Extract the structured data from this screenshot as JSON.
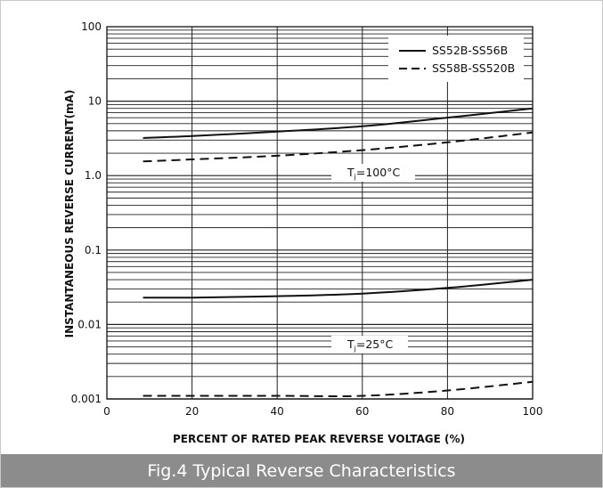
{
  "caption": "Fig.4 Typical Reverse Characteristics",
  "chart_data": {
    "type": "line",
    "title": "",
    "xlabel": "PERCENT OF RATED PEAK REVERSE VOLTAGE (%)",
    "ylabel": "INSTANTANEOUS REVERSE CURRENT(mA)",
    "x_ticks": [
      "0",
      "20",
      "40",
      "60",
      "80",
      "100"
    ],
    "y_ticks": [
      "0.001",
      "0.01",
      "0.1",
      "1.0",
      "10",
      "100"
    ],
    "xlim": [
      0,
      100
    ],
    "ylim": [
      0.001,
      100
    ],
    "yscale": "log",
    "grid": true,
    "legend_position": "top-right",
    "legend": [
      {
        "label": "SS52B-SS56B",
        "style": "solid"
      },
      {
        "label": "SS58B-SS520B",
        "style": "dashed"
      }
    ],
    "annotations": [
      {
        "label": "Tj=100°C",
        "main": "T",
        "sub": "j",
        "rest": "=100°C",
        "x": 60,
        "y": 1.0
      },
      {
        "label": "Tj=25°C",
        "main": "T",
        "sub": "j",
        "rest": "=25°C",
        "x": 60,
        "y": 0.0045
      }
    ],
    "series": [
      {
        "name": "SS52B-SS56B",
        "condition": "Tj=100°C",
        "style": "solid",
        "x": [
          8.5,
          20,
          40,
          60,
          80,
          100
        ],
        "y": [
          3.2,
          3.4,
          3.9,
          4.6,
          6.0,
          8.0
        ]
      },
      {
        "name": "SS58B-SS520B",
        "condition": "Tj=100°C",
        "style": "dashed",
        "x": [
          8.5,
          20,
          40,
          60,
          80,
          100
        ],
        "y": [
          1.55,
          1.65,
          1.85,
          2.2,
          2.8,
          3.8
        ]
      },
      {
        "name": "SS52B-SS56B",
        "condition": "Tj=25°C",
        "style": "solid",
        "x": [
          8.5,
          20,
          40,
          60,
          80,
          100
        ],
        "y": [
          0.023,
          0.023,
          0.024,
          0.026,
          0.031,
          0.04
        ]
      },
      {
        "name": "SS58B-SS520B",
        "condition": "Tj=25°C",
        "style": "dashed",
        "x": [
          8.5,
          20,
          40,
          60,
          80,
          100
        ],
        "y": [
          0.0011,
          0.0011,
          0.0011,
          0.0011,
          0.0013,
          0.0017
        ]
      }
    ],
    "colors": {
      "line": "#111111",
      "grid": "#222222",
      "caption_bg": "#8c8c8c",
      "caption_text": "#ffffff"
    }
  }
}
